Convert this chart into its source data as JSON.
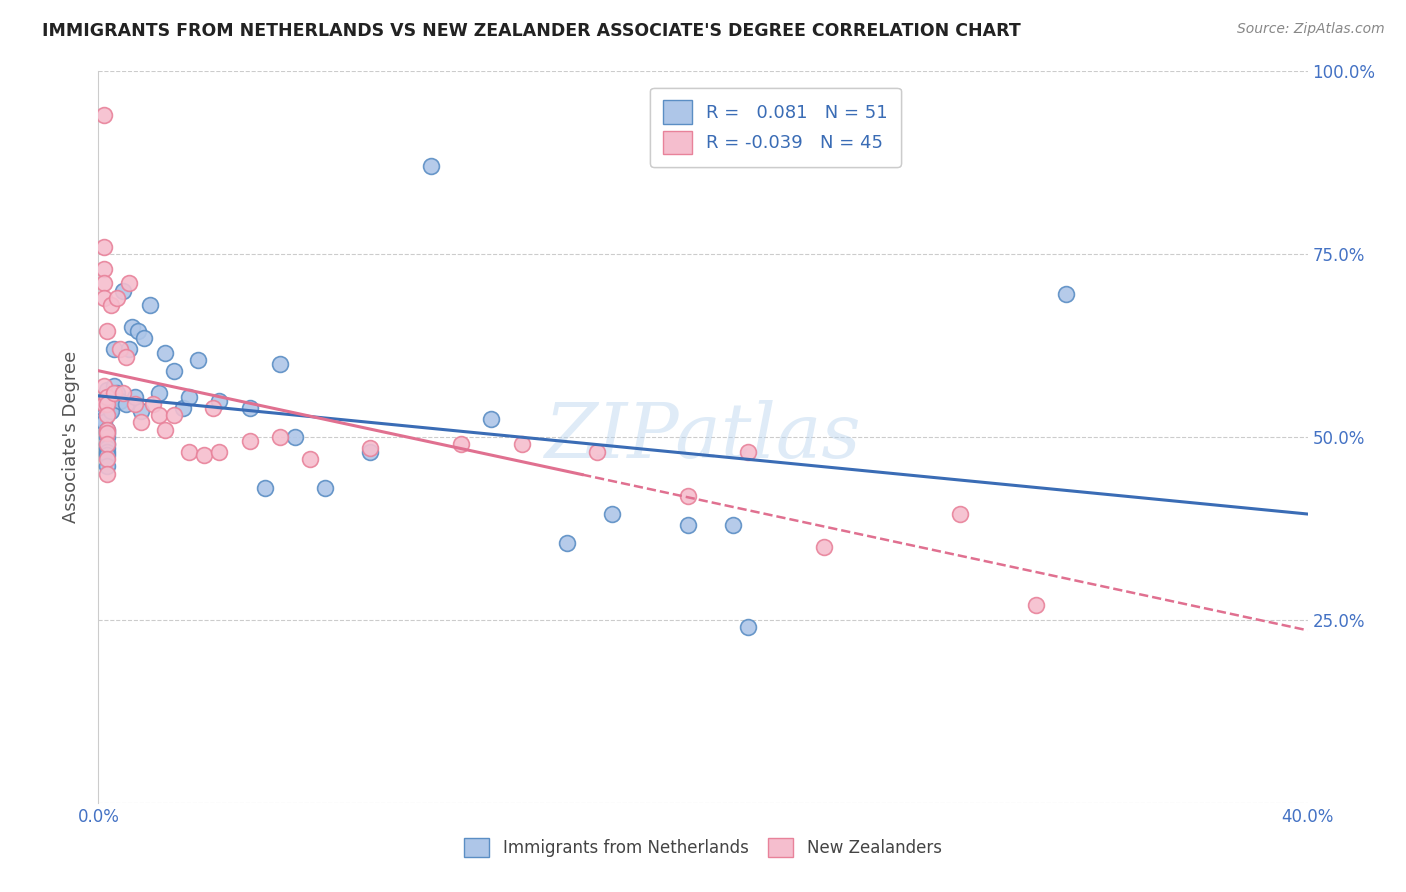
{
  "title": "IMMIGRANTS FROM NETHERLANDS VS NEW ZEALANDER ASSOCIATE'S DEGREE CORRELATION CHART",
  "source": "Source: ZipAtlas.com",
  "ylabel": "Associate's Degree",
  "xlim": [
    0.0,
    0.4
  ],
  "ylim": [
    0.0,
    1.0
  ],
  "xticks": [
    0.0,
    0.08,
    0.16,
    0.24,
    0.32,
    0.4
  ],
  "xtick_labels": [
    "0.0%",
    "",
    "",
    "",
    "",
    "40.0%"
  ],
  "yticks": [
    0.0,
    0.25,
    0.5,
    0.75,
    1.0
  ],
  "ytick_labels": [
    "",
    "25.0%",
    "50.0%",
    "75.0%",
    "100.0%"
  ],
  "blue_fill": "#aec6e8",
  "pink_fill": "#f5bece",
  "blue_edge": "#5b8ec4",
  "pink_edge": "#e8829a",
  "blue_line_color": "#3a6cb5",
  "pink_line_color": "#e07090",
  "R_blue": 0.081,
  "N_blue": 51,
  "R_pink": -0.039,
  "N_pink": 45,
  "legend_label_blue": "Immigrants from Netherlands",
  "legend_label_pink": "New Zealanders",
  "watermark": "ZIPatlas",
  "blue_scatter_x": [
    0.002,
    0.002,
    0.002,
    0.002,
    0.003,
    0.003,
    0.003,
    0.003,
    0.003,
    0.003,
    0.003,
    0.003,
    0.003,
    0.003,
    0.003,
    0.004,
    0.004,
    0.005,
    0.005,
    0.006,
    0.007,
    0.008,
    0.009,
    0.01,
    0.011,
    0.012,
    0.013,
    0.014,
    0.015,
    0.017,
    0.02,
    0.022,
    0.025,
    0.028,
    0.03,
    0.033,
    0.04,
    0.05,
    0.055,
    0.06,
    0.065,
    0.075,
    0.09,
    0.11,
    0.13,
    0.155,
    0.17,
    0.195,
    0.21,
    0.215,
    0.32
  ],
  "blue_scatter_y": [
    0.535,
    0.53,
    0.525,
    0.52,
    0.565,
    0.555,
    0.545,
    0.51,
    0.505,
    0.5,
    0.49,
    0.485,
    0.48,
    0.475,
    0.46,
    0.54,
    0.535,
    0.62,
    0.57,
    0.56,
    0.55,
    0.7,
    0.545,
    0.62,
    0.65,
    0.555,
    0.645,
    0.535,
    0.635,
    0.68,
    0.56,
    0.615,
    0.59,
    0.54,
    0.555,
    0.605,
    0.55,
    0.54,
    0.43,
    0.6,
    0.5,
    0.43,
    0.48,
    0.87,
    0.525,
    0.355,
    0.395,
    0.38,
    0.38,
    0.24,
    0.695
  ],
  "pink_scatter_x": [
    0.002,
    0.002,
    0.002,
    0.002,
    0.002,
    0.002,
    0.002,
    0.003,
    0.003,
    0.003,
    0.003,
    0.003,
    0.003,
    0.003,
    0.003,
    0.003,
    0.004,
    0.005,
    0.006,
    0.007,
    0.008,
    0.009,
    0.01,
    0.012,
    0.014,
    0.018,
    0.02,
    0.022,
    0.025,
    0.03,
    0.035,
    0.038,
    0.04,
    0.05,
    0.06,
    0.07,
    0.09,
    0.12,
    0.14,
    0.165,
    0.195,
    0.215,
    0.24,
    0.285,
    0.31
  ],
  "pink_scatter_y": [
    0.94,
    0.76,
    0.73,
    0.71,
    0.69,
    0.57,
    0.545,
    0.645,
    0.555,
    0.545,
    0.53,
    0.51,
    0.505,
    0.49,
    0.47,
    0.45,
    0.68,
    0.56,
    0.69,
    0.62,
    0.56,
    0.61,
    0.71,
    0.545,
    0.52,
    0.545,
    0.53,
    0.51,
    0.53,
    0.48,
    0.475,
    0.54,
    0.48,
    0.495,
    0.5,
    0.47,
    0.485,
    0.49,
    0.49,
    0.48,
    0.42,
    0.48,
    0.35,
    0.395,
    0.27
  ]
}
